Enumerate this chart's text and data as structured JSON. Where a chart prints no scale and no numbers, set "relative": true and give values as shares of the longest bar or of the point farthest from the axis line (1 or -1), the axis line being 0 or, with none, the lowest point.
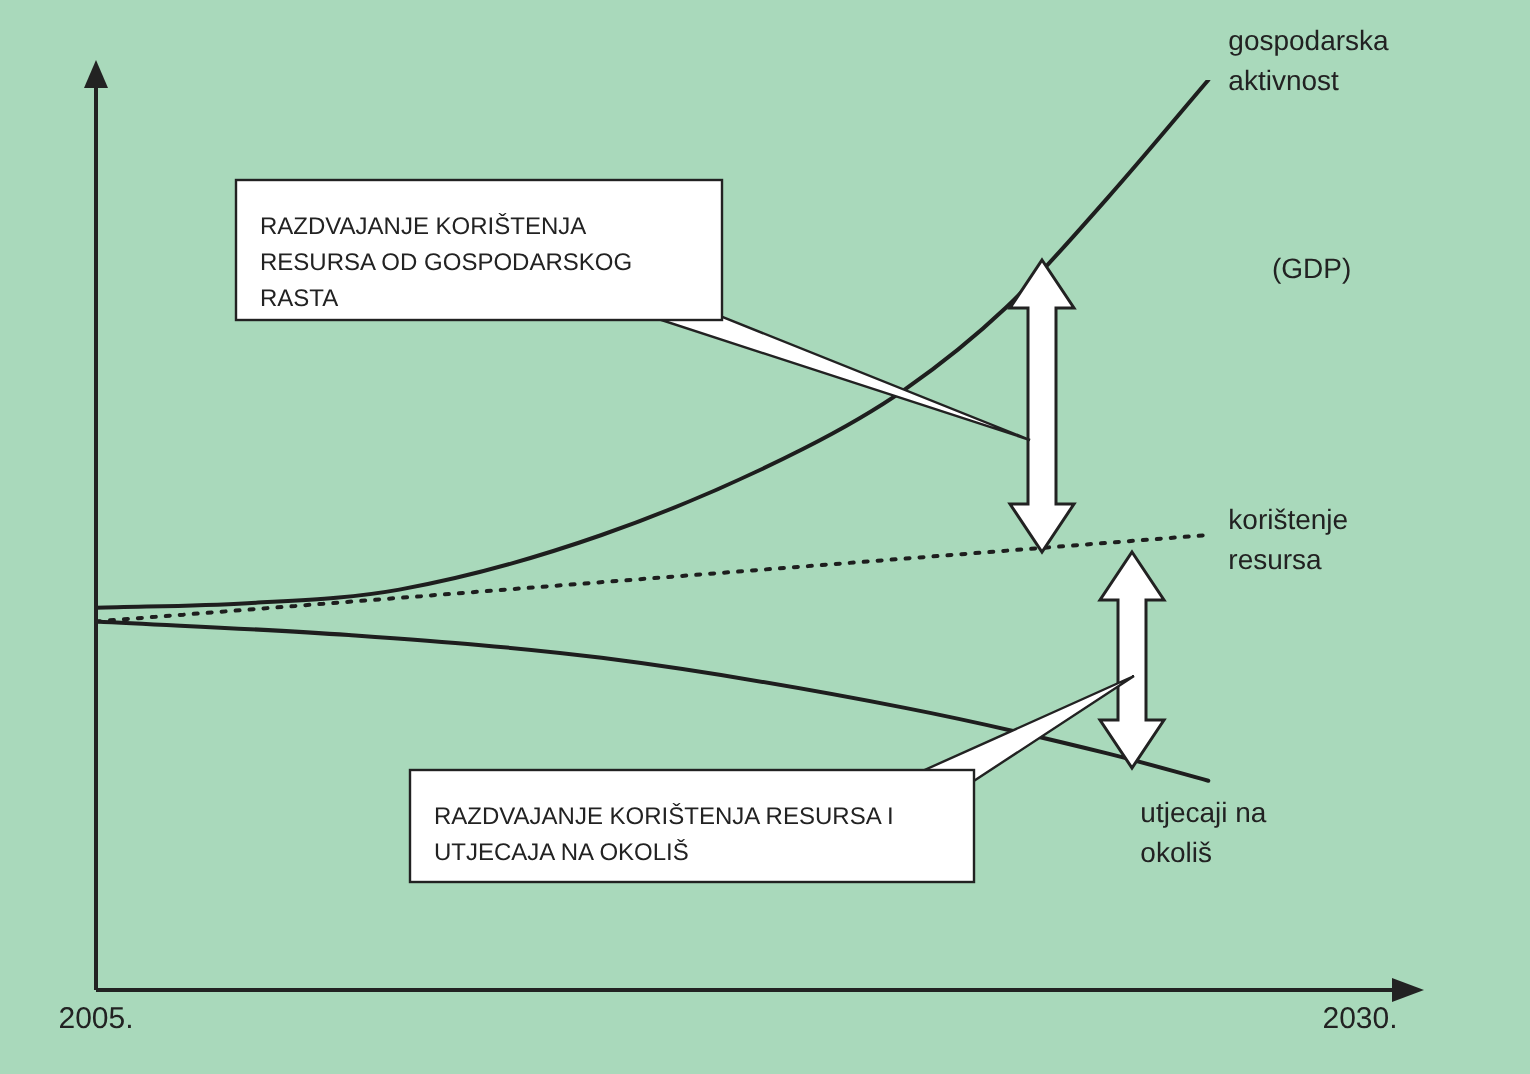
{
  "chart_data": {
    "type": "line",
    "relative": true,
    "xlim": [
      2005,
      2030
    ],
    "xticks": [
      {
        "value": 2005,
        "label": "2005."
      },
      {
        "value": 2030,
        "label": "2030."
      }
    ],
    "tick_labels": "x",
    "grid": false,
    "marker": "none",
    "series": [
      {
        "name": "gospodarska aktivnost",
        "color": "#1e1e1e",
        "x": [
          2005,
          2008,
          2011,
          2015,
          2019,
          2021,
          2023,
          2025,
          2027
        ],
        "values": [
          0.42,
          0.425,
          0.44,
          0.5,
          0.595,
          0.66,
          0.75,
          0.87,
          1
        ]
      },
      {
        "name": "korištenje resursa",
        "color": "#1e1e1e",
        "line_style": "dotted",
        "x": [
          2005,
          2027
        ],
        "values": [
          0.405,
          0.5
        ]
      },
      {
        "name": "utjecaji na okoliš",
        "color": "#1e1e1e",
        "x": [
          2005,
          2010,
          2015,
          2021,
          2025,
          2027
        ],
        "values": [
          0.405,
          0.39,
          0.365,
          0.31,
          0.26,
          0.23
        ]
      }
    ],
    "annotations": [
      "(GDP)",
      "RAZDVAJANJE KORIŠTENJA RESURSA OD GOSPODARSKOG RASTA",
      "RAZDVAJANJE KORIŠTENJA RESURSA I UTJECAJA NA OKOLIŠ"
    ]
  }
}
